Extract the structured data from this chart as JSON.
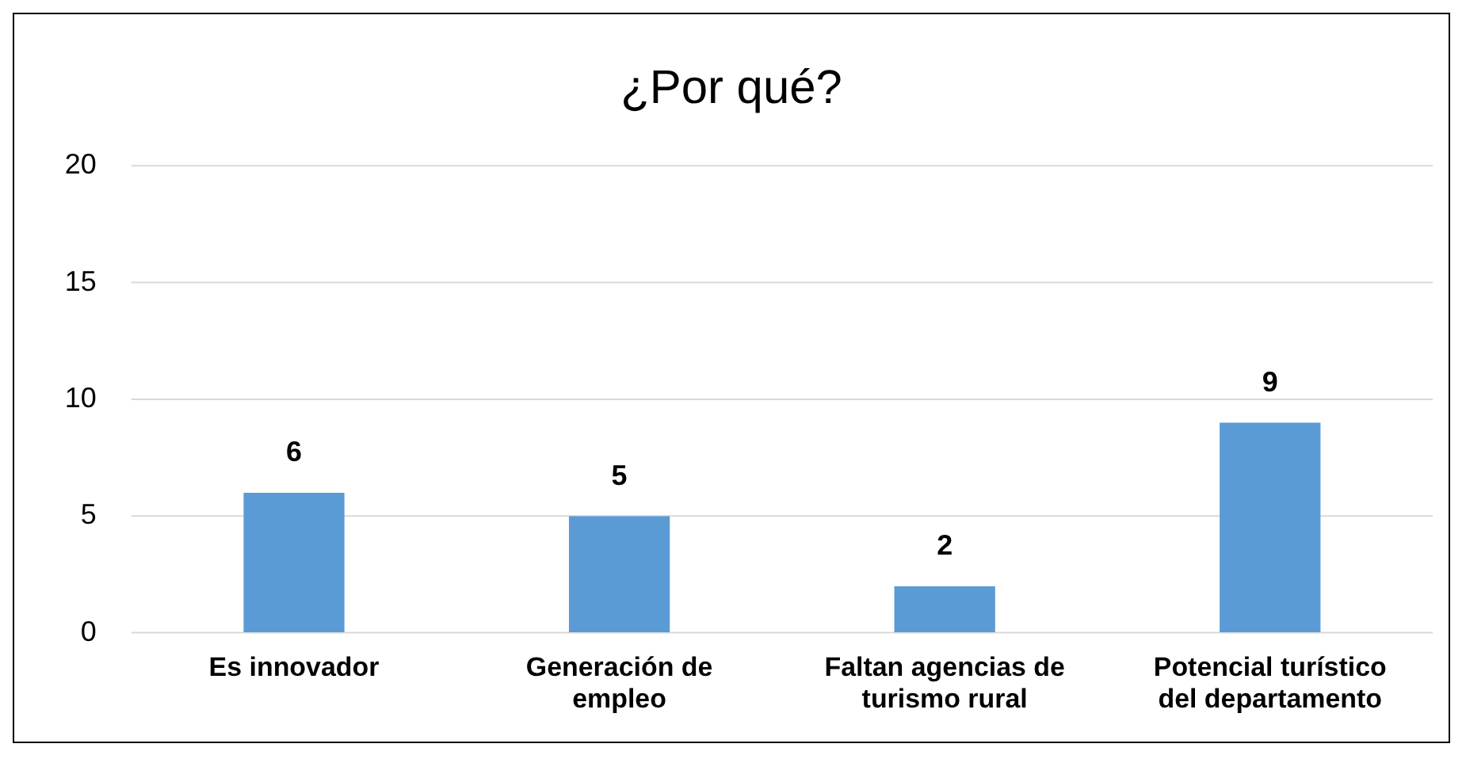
{
  "chart_data": {
    "type": "bar",
    "title": "¿Por qué?",
    "categories": [
      "Es innovador",
      "Generación de empleo",
      "Faltan agencias de turismo rural",
      "Potencial turístico del departamento"
    ],
    "values": [
      6,
      5,
      2,
      9
    ],
    "color": "#5b9bd5",
    "ylim": [
      0,
      20
    ],
    "yticks": [
      0,
      5,
      10,
      15,
      20
    ],
    "grid": "y",
    "data_labels": true,
    "legend": false
  }
}
